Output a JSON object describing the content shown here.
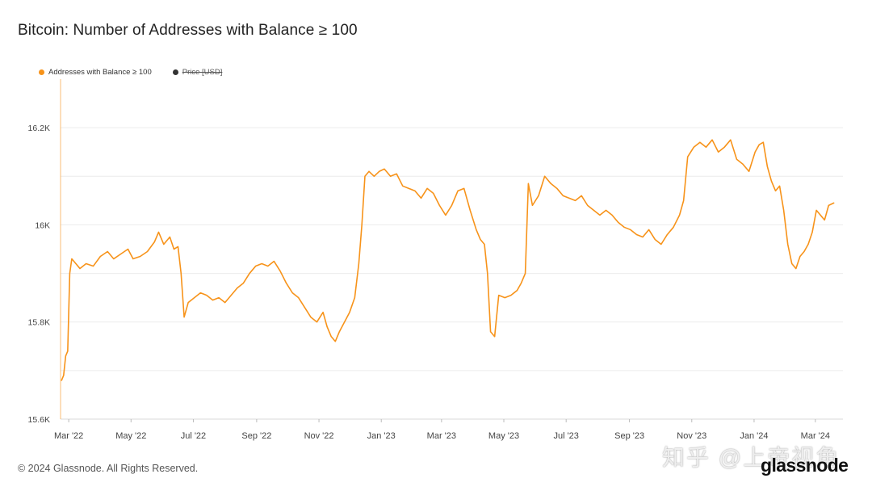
{
  "page": {
    "title": "Bitcoin: Number of Addresses with Balance ≥ 100",
    "copyright": "© 2024 Glassnode. All Rights Reserved.",
    "brand": "glassnode",
    "watermark": "知乎 @上帝视角"
  },
  "legend": [
    {
      "label": "Addresses with Balance ≥ 100",
      "color": "#F7931A",
      "enabled": true
    },
    {
      "label": "Price [USD]",
      "color": "#333333",
      "enabled": false
    }
  ],
  "chart_data": {
    "type": "line",
    "title": "Bitcoin: Number of Addresses with Balance ≥ 100",
    "ylim": [
      15600,
      16300
    ],
    "y_ticks": [
      15600,
      15700,
      15800,
      15900,
      16000,
      16100,
      16200
    ],
    "y_tick_labels": [
      "15.6K",
      "",
      "15.8K",
      "",
      "16K",
      "",
      "16.2K"
    ],
    "x_range": [
      "2022-02-21",
      "2024-03-28"
    ],
    "x_ticks": [
      {
        "date": "2022-03-01",
        "label": "Mar '22"
      },
      {
        "date": "2022-05-01",
        "label": "May '22"
      },
      {
        "date": "2022-07-01",
        "label": "Jul '22"
      },
      {
        "date": "2022-09-01",
        "label": "Sep '22"
      },
      {
        "date": "2022-11-01",
        "label": "Nov '22"
      },
      {
        "date": "2023-01-01",
        "label": "Jan '23"
      },
      {
        "date": "2023-03-01",
        "label": "Mar '23"
      },
      {
        "date": "2023-05-01",
        "label": "May '23"
      },
      {
        "date": "2023-07-01",
        "label": "Jul '23"
      },
      {
        "date": "2023-09-01",
        "label": "Sep '23"
      },
      {
        "date": "2023-11-01",
        "label": "Nov '23"
      },
      {
        "date": "2024-01-01",
        "label": "Jan '24"
      },
      {
        "date": "2024-03-01",
        "label": "Mar '24"
      }
    ],
    "grid": true,
    "legend_position": "top-left",
    "series": [
      {
        "name": "Addresses with Balance ≥ 100",
        "color": "#F7931A",
        "points": [
          [
            "2022-02-22",
            15680
          ],
          [
            "2022-02-24",
            15690
          ],
          [
            "2022-02-26",
            15730
          ],
          [
            "2022-02-28",
            15740
          ],
          [
            "2022-03-02",
            15900
          ],
          [
            "2022-03-04",
            15930
          ],
          [
            "2022-03-08",
            15920
          ],
          [
            "2022-03-12",
            15910
          ],
          [
            "2022-03-18",
            15920
          ],
          [
            "2022-03-25",
            15915
          ],
          [
            "2022-04-01",
            15935
          ],
          [
            "2022-04-08",
            15945
          ],
          [
            "2022-04-14",
            15930
          ],
          [
            "2022-04-21",
            15940
          ],
          [
            "2022-04-28",
            15950
          ],
          [
            "2022-05-03",
            15930
          ],
          [
            "2022-05-10",
            15935
          ],
          [
            "2022-05-17",
            15945
          ],
          [
            "2022-05-24",
            15965
          ],
          [
            "2022-05-28",
            15985
          ],
          [
            "2022-06-02",
            15960
          ],
          [
            "2022-06-08",
            15975
          ],
          [
            "2022-06-12",
            15950
          ],
          [
            "2022-06-16",
            15955
          ],
          [
            "2022-06-19",
            15900
          ],
          [
            "2022-06-22",
            15810
          ],
          [
            "2022-06-26",
            15840
          ],
          [
            "2022-07-02",
            15850
          ],
          [
            "2022-07-08",
            15860
          ],
          [
            "2022-07-14",
            15855
          ],
          [
            "2022-07-20",
            15845
          ],
          [
            "2022-07-26",
            15850
          ],
          [
            "2022-08-01",
            15840
          ],
          [
            "2022-08-07",
            15855
          ],
          [
            "2022-08-13",
            15870
          ],
          [
            "2022-08-19",
            15880
          ],
          [
            "2022-08-25",
            15900
          ],
          [
            "2022-08-31",
            15915
          ],
          [
            "2022-09-06",
            15920
          ],
          [
            "2022-09-12",
            15915
          ],
          [
            "2022-09-18",
            15925
          ],
          [
            "2022-09-24",
            15905
          ],
          [
            "2022-09-30",
            15880
          ],
          [
            "2022-10-06",
            15860
          ],
          [
            "2022-10-12",
            15850
          ],
          [
            "2022-10-18",
            15830
          ],
          [
            "2022-10-24",
            15810
          ],
          [
            "2022-10-30",
            15800
          ],
          [
            "2022-11-05",
            15820
          ],
          [
            "2022-11-09",
            15790
          ],
          [
            "2022-11-13",
            15770
          ],
          [
            "2022-11-17",
            15760
          ],
          [
            "2022-11-21",
            15780
          ],
          [
            "2022-11-26",
            15800
          ],
          [
            "2022-12-01",
            15820
          ],
          [
            "2022-12-06",
            15850
          ],
          [
            "2022-12-10",
            15920
          ],
          [
            "2022-12-13",
            16000
          ],
          [
            "2022-12-16",
            16100
          ],
          [
            "2022-12-20",
            16110
          ],
          [
            "2022-12-25",
            16100
          ],
          [
            "2022-12-30",
            16110
          ],
          [
            "2023-01-04",
            16115
          ],
          [
            "2023-01-10",
            16100
          ],
          [
            "2023-01-16",
            16105
          ],
          [
            "2023-01-22",
            16080
          ],
          [
            "2023-01-28",
            16075
          ],
          [
            "2023-02-03",
            16070
          ],
          [
            "2023-02-09",
            16055
          ],
          [
            "2023-02-15",
            16075
          ],
          [
            "2023-02-21",
            16065
          ],
          [
            "2023-02-27",
            16040
          ],
          [
            "2023-03-05",
            16020
          ],
          [
            "2023-03-11",
            16040
          ],
          [
            "2023-03-17",
            16070
          ],
          [
            "2023-03-23",
            16075
          ],
          [
            "2023-03-29",
            16030
          ],
          [
            "2023-04-04",
            15990
          ],
          [
            "2023-04-08",
            15970
          ],
          [
            "2023-04-12",
            15960
          ],
          [
            "2023-04-15",
            15900
          ],
          [
            "2023-04-18",
            15780
          ],
          [
            "2023-04-22",
            15770
          ],
          [
            "2023-04-26",
            15855
          ],
          [
            "2023-05-02",
            15850
          ],
          [
            "2023-05-08",
            15855
          ],
          [
            "2023-05-14",
            15865
          ],
          [
            "2023-05-18",
            15880
          ],
          [
            "2023-05-22",
            15900
          ],
          [
            "2023-05-25",
            16085
          ],
          [
            "2023-05-29",
            16040
          ],
          [
            "2023-06-04",
            16060
          ],
          [
            "2023-06-10",
            16100
          ],
          [
            "2023-06-16",
            16085
          ],
          [
            "2023-06-22",
            16075
          ],
          [
            "2023-06-28",
            16060
          ],
          [
            "2023-07-04",
            16055
          ],
          [
            "2023-07-10",
            16050
          ],
          [
            "2023-07-16",
            16060
          ],
          [
            "2023-07-22",
            16040
          ],
          [
            "2023-07-28",
            16030
          ],
          [
            "2023-08-03",
            16020
          ],
          [
            "2023-08-09",
            16030
          ],
          [
            "2023-08-15",
            16020
          ],
          [
            "2023-08-21",
            16005
          ],
          [
            "2023-08-27",
            15995
          ],
          [
            "2023-09-02",
            15990
          ],
          [
            "2023-09-08",
            15980
          ],
          [
            "2023-09-14",
            15975
          ],
          [
            "2023-09-20",
            15990
          ],
          [
            "2023-09-26",
            15970
          ],
          [
            "2023-10-02",
            15960
          ],
          [
            "2023-10-08",
            15980
          ],
          [
            "2023-10-14",
            15995
          ],
          [
            "2023-10-20",
            16020
          ],
          [
            "2023-10-24",
            16050
          ],
          [
            "2023-10-28",
            16140
          ],
          [
            "2023-11-03",
            16160
          ],
          [
            "2023-11-09",
            16170
          ],
          [
            "2023-11-15",
            16160
          ],
          [
            "2023-11-21",
            16175
          ],
          [
            "2023-11-27",
            16150
          ],
          [
            "2023-12-03",
            16160
          ],
          [
            "2023-12-09",
            16175
          ],
          [
            "2023-12-15",
            16135
          ],
          [
            "2023-12-21",
            16125
          ],
          [
            "2023-12-27",
            16110
          ],
          [
            "2024-01-02",
            16150
          ],
          [
            "2024-01-06",
            16165
          ],
          [
            "2024-01-10",
            16170
          ],
          [
            "2024-01-14",
            16120
          ],
          [
            "2024-01-18",
            16090
          ],
          [
            "2024-01-22",
            16070
          ],
          [
            "2024-01-26",
            16080
          ],
          [
            "2024-01-30",
            16030
          ],
          [
            "2024-02-03",
            15960
          ],
          [
            "2024-02-07",
            15920
          ],
          [
            "2024-02-11",
            15910
          ],
          [
            "2024-02-15",
            15935
          ],
          [
            "2024-02-19",
            15945
          ],
          [
            "2024-02-23",
            15960
          ],
          [
            "2024-02-27",
            15985
          ],
          [
            "2024-03-02",
            16030
          ],
          [
            "2024-03-06",
            16020
          ],
          [
            "2024-03-10",
            16010
          ],
          [
            "2024-03-14",
            16040
          ],
          [
            "2024-03-19",
            16045
          ]
        ]
      }
    ]
  }
}
